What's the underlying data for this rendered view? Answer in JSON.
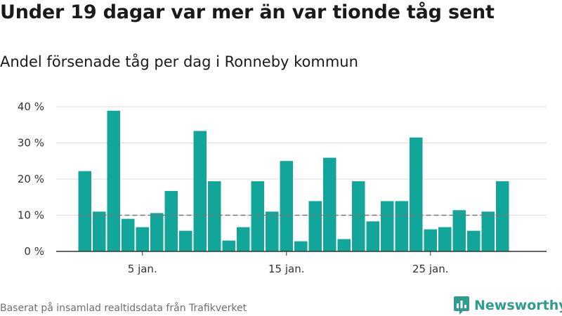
{
  "title": "Under 19 dagar var mer än var tionde tåg sent",
  "subtitle": "Andel försenade tåg per dag i Ronneby kommun",
  "source": "Baserat på insamlad realtidsdata från Trafikverket",
  "brand": {
    "name": "Newsworthy",
    "logo_icon": "bar-chart-logo-icon",
    "color": "#2f9c8e"
  },
  "colors": {
    "bar": "#12a69a",
    "reference_line": "#777777",
    "grid": "#dddddd",
    "axis": "#333333"
  },
  "chart_data": {
    "type": "bar",
    "x_unit": "day of January",
    "x": [
      1,
      2,
      3,
      4,
      5,
      6,
      7,
      8,
      9,
      10,
      11,
      12,
      13,
      14,
      15,
      16,
      17,
      18,
      19,
      20,
      21,
      22,
      23,
      24,
      25,
      26,
      27,
      28,
      29,
      30
    ],
    "values": [
      22.2,
      11.0,
      38.9,
      9.0,
      6.7,
      10.6,
      16.7,
      5.7,
      33.3,
      19.4,
      3.0,
      6.7,
      19.4,
      11.0,
      25.0,
      2.8,
      13.9,
      25.9,
      3.4,
      19.4,
      8.3,
      13.9,
      13.9,
      31.5,
      6.1,
      6.7,
      11.4,
      5.7,
      11.0,
      19.4
    ],
    "unit": "%",
    "ylim": [
      0,
      40
    ],
    "yticks": [
      {
        "value": 0,
        "label": "0 %"
      },
      {
        "value": 10,
        "label": "10 %"
      },
      {
        "value": 20,
        "label": "20 %"
      },
      {
        "value": 30,
        "label": "30 %"
      },
      {
        "value": 40,
        "label": "40 %"
      }
    ],
    "xticks": [
      {
        "day": 5,
        "label": "5 jan."
      },
      {
        "day": 15,
        "label": "15 jan."
      },
      {
        "day": 25,
        "label": "25 jan."
      }
    ],
    "reference_line": {
      "value": 10,
      "style": "dashed"
    },
    "grid": true,
    "xlabel": "",
    "ylabel": ""
  }
}
